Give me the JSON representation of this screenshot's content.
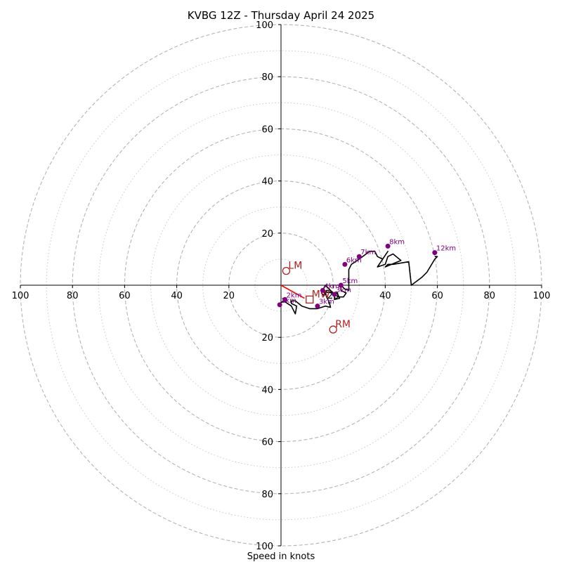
{
  "chart_data": {
    "type": "line",
    "title": "KVBG 12Z - Thursday April 24 2025",
    "xlabel": "Speed in knots",
    "ylabel": "",
    "xlim": [
      -100,
      100
    ],
    "ylim": [
      -100,
      100
    ],
    "grid": true,
    "rings_major": [
      20,
      40,
      60,
      80,
      100
    ],
    "rings_minor": [
      10,
      30,
      50,
      70,
      90
    ],
    "x_ticks": [
      -100,
      -80,
      -60,
      -40,
      -20,
      20,
      40,
      60,
      80,
      100
    ],
    "y_ticks": [
      -100,
      -80,
      -60,
      -40,
      -20,
      20,
      40,
      60,
      80,
      100
    ],
    "hodograph": {
      "color": "#000000",
      "x": [
        -0.5,
        1,
        4,
        5.5,
        6,
        4,
        4,
        5.5,
        8,
        11,
        14,
        17,
        19,
        18.5,
        17.5,
        17,
        16,
        20,
        18,
        17,
        15.5,
        16.5,
        17.5,
        19,
        20,
        21.5,
        22.5,
        20.5,
        20.5,
        22,
        24,
        25,
        23,
        23,
        24.5,
        26,
        26,
        27,
        30,
        34,
        36,
        37,
        39,
        41,
        37,
        40,
        41,
        43,
        46,
        40,
        41,
        43,
        49,
        50,
        54,
        56,
        59,
        60,
        59
      ],
      "y": [
        -7,
        -6,
        -8,
        -11,
        -8,
        -7,
        -6,
        -6,
        -8,
        -9,
        -9,
        -8,
        -8.5,
        -6.5,
        -4.5,
        -3,
        -2.5,
        -3,
        -1,
        0,
        -3,
        -4,
        -2,
        -2,
        -3.5,
        -3,
        -5,
        -5.5,
        -3.5,
        -4.5,
        -4.5,
        -3,
        -2,
        0,
        -1.5,
        -2,
        6,
        8,
        10,
        13,
        13,
        11,
        10,
        13,
        7,
        8,
        11,
        12,
        9.5,
        7,
        8,
        8,
        9,
        0,
        3,
        5,
        10,
        11,
        11
      ]
    },
    "height_points": [
      {
        "label": "1km",
        "x": -0.5,
        "y": -7.5
      },
      {
        "label": "2km",
        "x": 1.5,
        "y": -5.5
      },
      {
        "label": "3km",
        "x": 14,
        "y": -8
      },
      {
        "label": "3km",
        "x": 20.5,
        "y": -3.5
      },
      {
        "label": "4km",
        "x": 16,
        "y": -2
      },
      {
        "label": "5km",
        "x": 23,
        "y": 0
      },
      {
        "label": "6km",
        "x": 24.5,
        "y": 8
      },
      {
        "label": "7km",
        "x": 30,
        "y": 11
      },
      {
        "label": "8km",
        "x": 41,
        "y": 15
      },
      {
        "label": "12km",
        "x": 59,
        "y": 12.5
      }
    ],
    "motion_points": [
      {
        "label": "LM",
        "x": 2,
        "y": 5.5,
        "marker": "circle"
      },
      {
        "label": "RM",
        "x": 20,
        "y": -17,
        "marker": "circle"
      },
      {
        "label": "MW",
        "x": 11,
        "y": -5.5,
        "marker": "square"
      }
    ],
    "mean_vector": {
      "x1": 0,
      "y1": 0,
      "x2": 9,
      "y2": -5,
      "color": "#ff0000"
    }
  }
}
